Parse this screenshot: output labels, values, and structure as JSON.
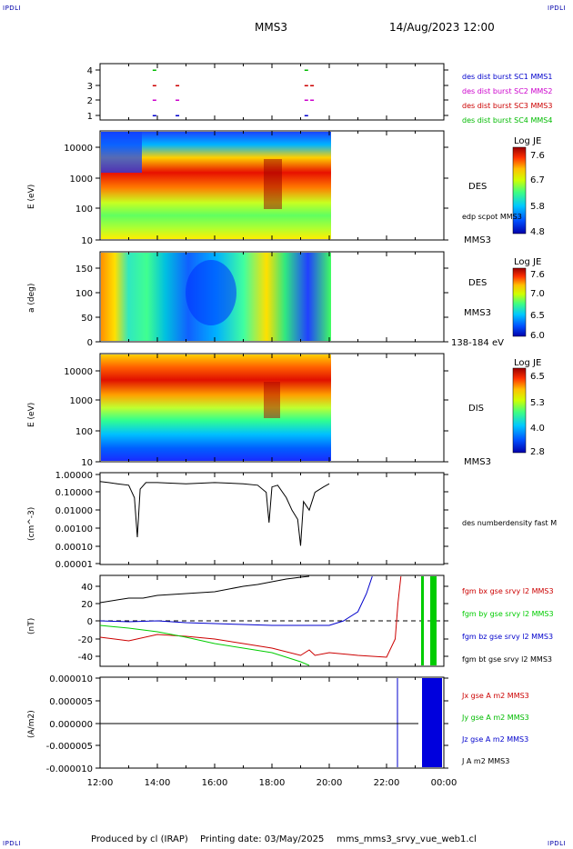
{
  "header": {
    "corner_left_top": "IPDLI",
    "corner_right_top": "IPDLI",
    "corner_left_bottom": "IPDLI",
    "corner_right_bottom": "IPDLI",
    "spacecraft": "MMS3",
    "datetime": "14/Aug/2023 12:00"
  },
  "footer": {
    "produced_by": "Produced by cl (IRAP)",
    "printing_date": "Printing date: 03/May/2025",
    "filename": "mms_mms3_srvy_vue_web1.cl"
  },
  "colors": {
    "burst_mms1": "#0000cc",
    "burst_mms2": "#cc00cc",
    "burst_mms3": "#cc0000",
    "burst_mms4": "#00bb00",
    "fgm_bx": "#cc0000",
    "fgm_by": "#00cc00",
    "fgm_bz": "#0000cc",
    "fgm_bt": "#000000"
  },
  "x_axis": {
    "range_hours": [
      12,
      24
    ],
    "ticks": [
      "12:00",
      "14:00",
      "16:00",
      "18:00",
      "20:00",
      "22:00",
      "00:00"
    ]
  },
  "chart_data": [
    {
      "type": "scatter",
      "id": "burst",
      "yticks": [
        "4",
        "3",
        "2",
        "1"
      ],
      "legend": [
        "des dist burst SC1 MMS1",
        "des dist burst SC2 MMS2",
        "des dist burst SC3 MMS3",
        "des dist burst SC4 MMS4"
      ],
      "series": [
        {
          "sc": 4,
          "x": [
            13.9,
            19.2
          ]
        },
        {
          "sc": 3,
          "x": [
            13.9,
            14.7,
            19.2,
            19.4
          ]
        },
        {
          "sc": 2,
          "x": [
            13.9,
            14.7,
            19.2,
            19.4
          ]
        },
        {
          "sc": 1,
          "x": [
            13.9,
            14.7,
            19.2
          ]
        }
      ]
    },
    {
      "type": "heatmap",
      "id": "des-energy",
      "ylabel": "E (eV)",
      "yticks": [
        "10000",
        "1000",
        "100",
        "10"
      ],
      "right_labels": [
        "DES",
        "edp scpot MMS3",
        "MMS3"
      ],
      "colorbar": {
        "title": "Log JE",
        "ticks": [
          "7.6",
          "6.7",
          "5.8",
          "4.8"
        ]
      },
      "data_end_hour": 20.05
    },
    {
      "type": "heatmap",
      "id": "des-pitch",
      "ylabel": "a (deg)",
      "yticks": [
        "150",
        "100",
        "50",
        "0"
      ],
      "right_labels": [
        "DES",
        "MMS3",
        "138-184 eV"
      ],
      "colorbar": {
        "title": "Log JE",
        "ticks": [
          "7.6",
          "7.0",
          "6.5",
          "6.0"
        ]
      },
      "data_end_hour": 20.05
    },
    {
      "type": "heatmap",
      "id": "dis-energy",
      "ylabel": "E (eV)",
      "yticks": [
        "10000",
        "1000",
        "100",
        "10"
      ],
      "right_labels": [
        "DIS",
        "MMS3"
      ],
      "colorbar": {
        "title": "Log JE",
        "ticks": [
          "6.5",
          "5.3",
          "4.0",
          "2.8"
        ]
      },
      "data_end_hour": 20.05
    },
    {
      "type": "line",
      "id": "density",
      "ylabel": "(cm^-3)",
      "yticks": [
        "1.00000",
        "0.10000",
        "0.01000",
        "0.00100",
        "0.00010",
        "0.00001"
      ],
      "legend": [
        "des numberdensity fast M"
      ],
      "x": [
        12.0,
        12.3,
        12.6,
        13.0,
        13.2,
        13.3,
        13.4,
        13.6,
        14.0,
        15.0,
        16.0,
        17.0,
        17.5,
        17.8,
        17.9,
        18.0,
        18.2,
        18.5,
        18.7,
        18.9,
        19.0,
        19.1,
        19.3,
        19.5,
        19.8,
        20.0
      ],
      "y": [
        0.4,
        0.35,
        0.3,
        0.25,
        0.05,
        0.0003,
        0.15,
        0.35,
        0.35,
        0.3,
        0.35,
        0.3,
        0.25,
        0.1,
        0.002,
        0.2,
        0.25,
        0.05,
        0.01,
        0.003,
        0.0001,
        0.03,
        0.01,
        0.1,
        0.2,
        0.3
      ]
    },
    {
      "type": "line",
      "id": "fgm",
      "ylabel": "(nT)",
      "yticks": [
        "40",
        "20",
        "0",
        "-20",
        "-40"
      ],
      "ylim": [
        -50,
        50
      ],
      "legend": [
        "fgm bx gse srvy l2 MMS3",
        "fgm by gse srvy l2 MMS3",
        "fgm bz gse srvy l2 MMS3",
        "fgm bt gse srvy l2 MMS3"
      ],
      "series": [
        {
          "key": "bx",
          "x": [
            12.0,
            13.0,
            14.0,
            15.0,
            16.0,
            17.0,
            18.0,
            19.0,
            19.3,
            19.5,
            20.0,
            21.0,
            22.0,
            22.3,
            22.4,
            22.5
          ],
          "y": [
            -18,
            -22,
            -15,
            -17,
            -20,
            -25,
            -30,
            -38,
            -32,
            -38,
            -35,
            -38,
            -40,
            -20,
            20,
            50
          ]
        },
        {
          "key": "by",
          "x": [
            12.0,
            13.0,
            14.0,
            15.0,
            16.0,
            17.0,
            18.0,
            18.5,
            19.0,
            19.3
          ],
          "y": [
            -5,
            -8,
            -12,
            -18,
            -25,
            -30,
            -35,
            -40,
            -45,
            -50
          ]
        },
        {
          "key": "bz",
          "x": [
            12.0,
            13.0,
            14.0,
            15.0,
            16.0,
            17.0,
            18.0,
            19.0,
            20.0,
            20.5,
            21.0,
            21.3,
            21.5
          ],
          "y": [
            0,
            -1,
            0,
            -2,
            -3,
            -4,
            -5,
            -5,
            -5,
            0,
            10,
            30,
            50
          ]
        },
        {
          "key": "bt",
          "x": [
            12.0,
            13.0,
            13.5,
            14.0,
            15.0,
            16.0,
            17.0,
            17.5,
            18.0,
            18.5,
            19.0,
            19.3
          ],
          "y": [
            20,
            25,
            25,
            28,
            30,
            32,
            38,
            40,
            43,
            46,
            48,
            50
          ]
        }
      ]
    },
    {
      "type": "line",
      "id": "current",
      "ylabel": "(A/m2)",
      "yticks": [
        "0.000010",
        "0.000005",
        "0.000000",
        "-0.000005",
        "-0.000010"
      ],
      "ylim": [
        -1e-05,
        1e-05
      ],
      "legend": [
        "Jx gse A m2 MMS3",
        "Jy gse A m2 MMS3",
        "Jz gse A m2 MMS3",
        "J A m2 MMS3"
      ]
    }
  ]
}
